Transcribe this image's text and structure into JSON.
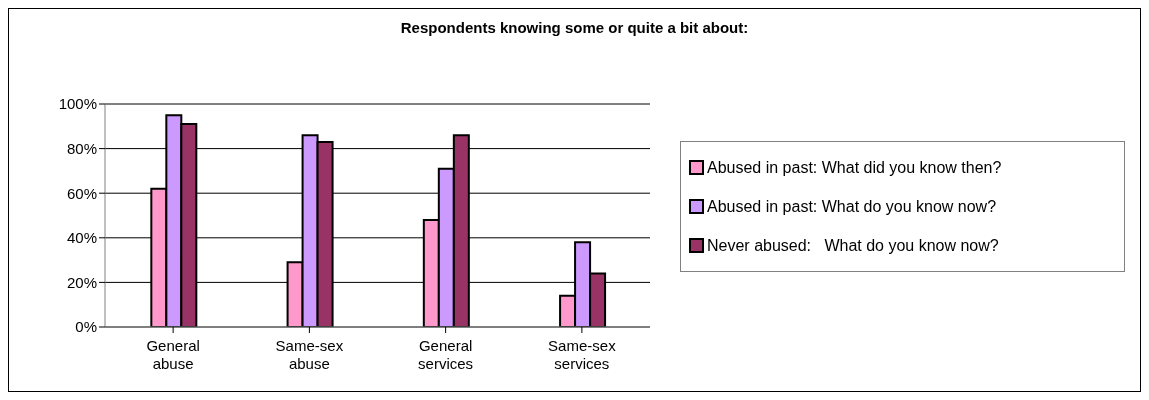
{
  "chart_data": {
    "type": "bar",
    "title": "Respondents knowing some or quite a bit about:",
    "categories": [
      "General abuse",
      "Same-sex abuse",
      "General services",
      "Same-sex services"
    ],
    "series": [
      {
        "name": "Abused in past: What did you know then?",
        "color": "#ff99cc",
        "values": [
          62,
          29,
          48,
          14
        ]
      },
      {
        "name": "Abused in past: What do you know now?",
        "color": "#cc99ff",
        "values": [
          95,
          86,
          71,
          38
        ]
      },
      {
        "name": "Never abused:   What do you know now?",
        "color": "#993366",
        "values": [
          91,
          83,
          86,
          24
        ]
      }
    ],
    "ylim": [
      0,
      100
    ],
    "yticks": [
      {
        "value": 0,
        "label": "0%"
      },
      {
        "value": 20,
        "label": "20%"
      },
      {
        "value": 40,
        "label": "40%"
      },
      {
        "value": 60,
        "label": "60%"
      },
      {
        "value": 80,
        "label": "80%"
      },
      {
        "value": 100,
        "label": "100%"
      }
    ],
    "grid": "y",
    "legend": "right"
  }
}
